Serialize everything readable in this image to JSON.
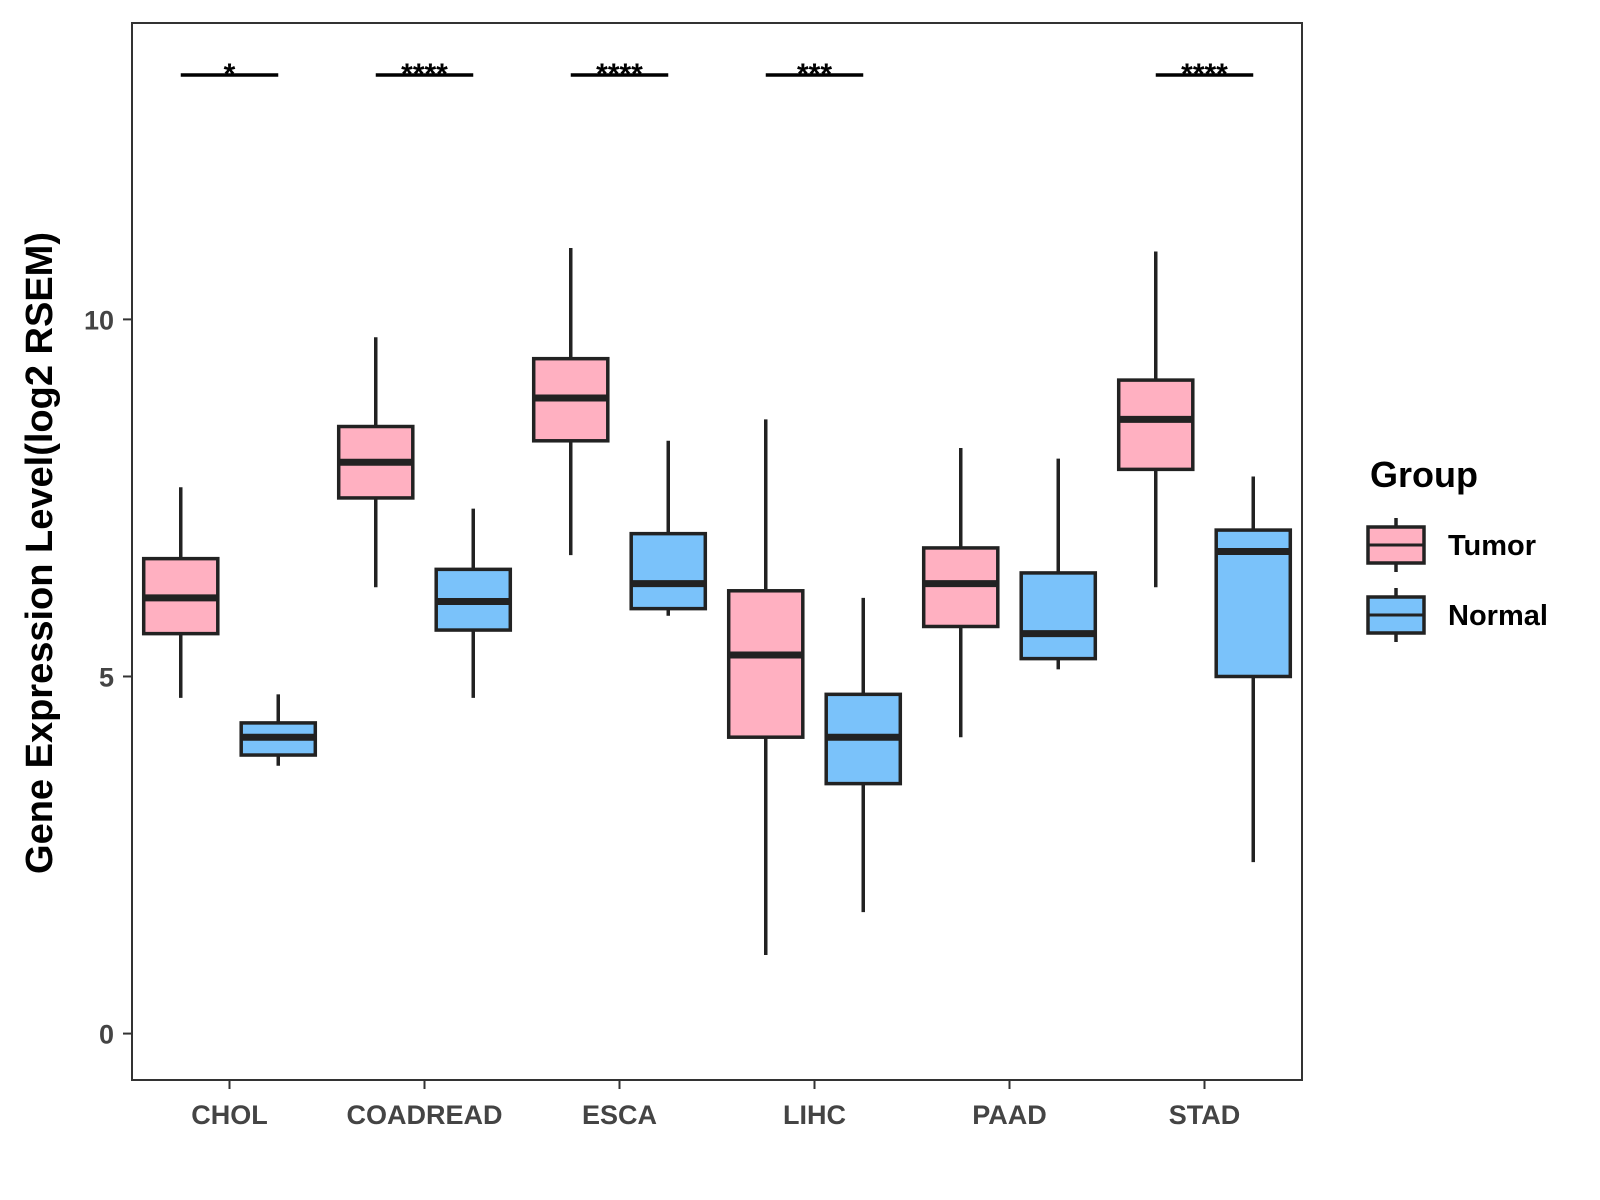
{
  "chart_data": {
    "type": "box",
    "ylabel": "Gene Expression Level(log2 RSEM)",
    "xlabel": "",
    "ylim": [
      -0.65,
      14.15
    ],
    "yticks": [
      0,
      5,
      10
    ],
    "grid": false,
    "legend": {
      "title": "Group",
      "placement": "right",
      "entries": [
        "Tumor",
        "Normal"
      ]
    },
    "categories": [
      "CHOL",
      "COADREAD",
      "ESCA",
      "LIHC",
      "PAAD",
      "STAD"
    ],
    "series": [
      {
        "name": "Tumor",
        "color": "#FFB0C1",
        "boxes": [
          {
            "min": 4.7,
            "q1": 5.6,
            "median": 6.1,
            "q3": 6.65,
            "max": 7.65
          },
          {
            "min": 6.25,
            "q1": 7.5,
            "median": 8.0,
            "q3": 8.5,
            "max": 9.75
          },
          {
            "min": 6.7,
            "q1": 8.3,
            "median": 8.9,
            "q3": 9.45,
            "max": 11.0
          },
          {
            "min": 1.1,
            "q1": 4.15,
            "median": 5.3,
            "q3": 6.2,
            "max": 8.6
          },
          {
            "min": 4.15,
            "q1": 5.7,
            "median": 6.3,
            "q3": 6.8,
            "max": 8.2
          },
          {
            "min": 6.25,
            "q1": 7.9,
            "median": 8.6,
            "q3": 9.15,
            "max": 10.95
          }
        ]
      },
      {
        "name": "Normal",
        "color": "#7AC2FA",
        "boxes": [
          {
            "min": 3.75,
            "q1": 3.9,
            "median": 4.15,
            "q3": 4.35,
            "max": 4.75
          },
          {
            "min": 4.7,
            "q1": 5.65,
            "median": 6.05,
            "q3": 6.5,
            "max": 7.35
          },
          {
            "min": 5.85,
            "q1": 5.95,
            "median": 6.3,
            "q3": 7.0,
            "max": 8.3
          },
          {
            "min": 1.7,
            "q1": 3.5,
            "median": 4.15,
            "q3": 4.75,
            "max": 6.1
          },
          {
            "min": 5.1,
            "q1": 5.25,
            "median": 5.6,
            "q3": 6.45,
            "max": 8.05
          },
          {
            "min": 2.4,
            "q1": 5.0,
            "median": 6.75,
            "q3": 7.05,
            "max": 7.8
          }
        ]
      }
    ],
    "significance": [
      {
        "category": "CHOL",
        "label": "*"
      },
      {
        "category": "COADREAD",
        "label": "****"
      },
      {
        "category": "ESCA",
        "label": "****"
      },
      {
        "category": "LIHC",
        "label": "***"
      },
      {
        "category": "PAAD",
        "label": ""
      },
      {
        "category": "STAD",
        "label": "****"
      }
    ]
  }
}
